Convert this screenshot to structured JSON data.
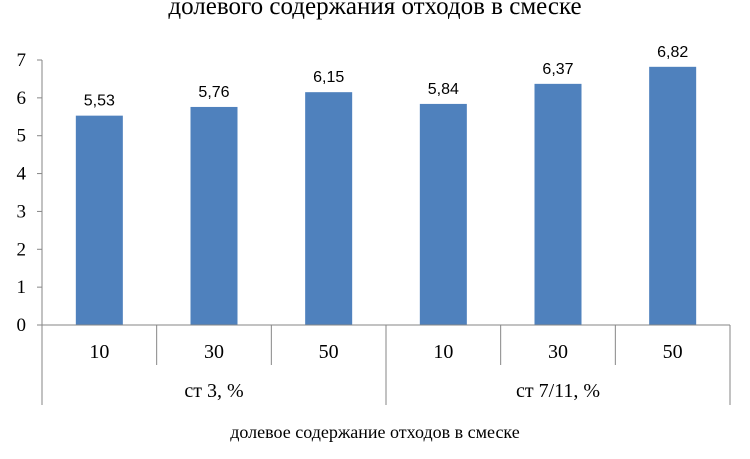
{
  "chart_data": {
    "type": "bar",
    "title": "долевого содержания отходов в смеске",
    "xlabel": "долевое содержание отходов в смеске",
    "ylabel": "",
    "ylim": [
      0,
      7
    ],
    "yticks": [
      "0",
      "1",
      "2",
      "3",
      "4",
      "5",
      "6",
      "7"
    ],
    "grid": false,
    "groups": [
      {
        "label": "ст 3, %",
        "categories": [
          "10",
          "30",
          "50"
        ]
      },
      {
        "label": "ст 7/11, %",
        "categories": [
          "10",
          "30",
          "50"
        ]
      }
    ],
    "values": [
      5.53,
      5.76,
      6.15,
      5.84,
      6.37,
      6.82
    ],
    "data_labels": [
      "5,53",
      "5,76",
      "6,15",
      "5,84",
      "6,37",
      "6,82"
    ],
    "bar_color": "#4F81BD"
  }
}
